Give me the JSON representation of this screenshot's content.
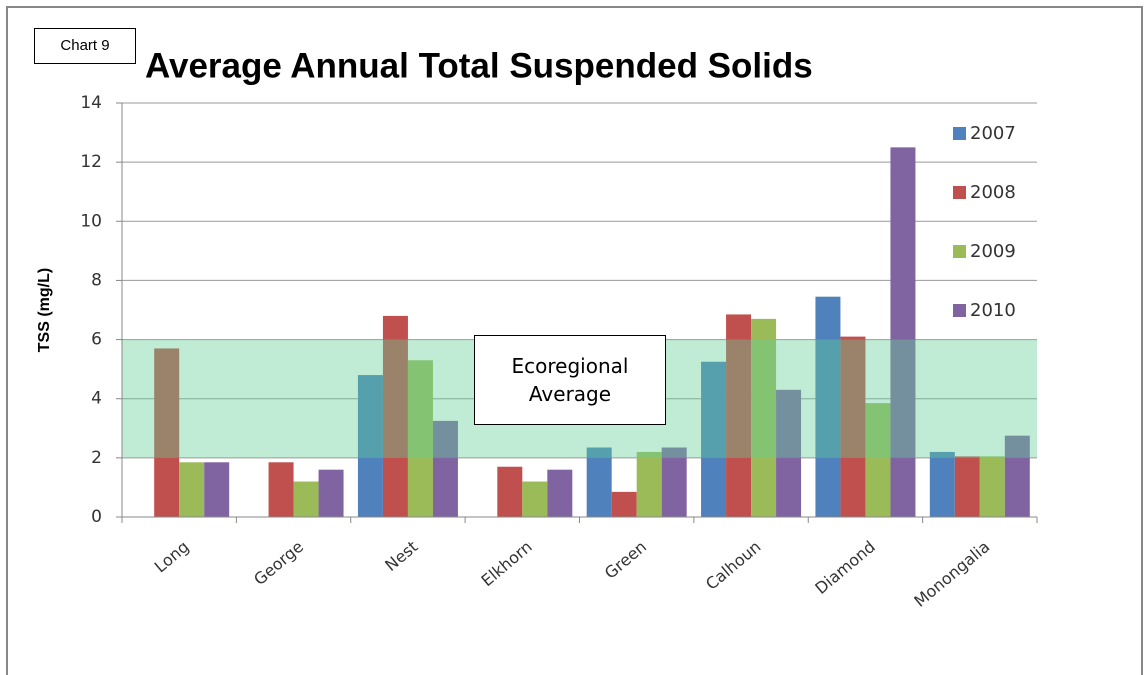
{
  "chart_data": {
    "type": "bar",
    "label": "Chart 9",
    "title": "Average Annual Total Suspended Solids",
    "y_label": "TSS (mg/L)",
    "categories": [
      "Long",
      "George",
      "Nest",
      "Elkhorn",
      "Green",
      "Calhoun",
      "Diamond",
      "Monongalia"
    ],
    "series": [
      {
        "name": "2007",
        "color": "#4f81bd",
        "values": [
          null,
          null,
          4.8,
          null,
          2.35,
          5.25,
          7.45,
          2.2
        ]
      },
      {
        "name": "2008",
        "color": "#c0504d",
        "values": [
          5.7,
          1.85,
          6.8,
          1.7,
          0.85,
          6.85,
          6.1,
          2.05
        ]
      },
      {
        "name": "2009",
        "color": "#9bbb59",
        "values": [
          1.85,
          1.2,
          5.3,
          1.2,
          2.2,
          6.7,
          3.85,
          2.05
        ]
      },
      {
        "name": "2010",
        "color": "#8064a2",
        "values": [
          1.85,
          1.6,
          3.25,
          1.6,
          2.35,
          4.3,
          12.5,
          2.75
        ]
      }
    ],
    "ylim": [
      0,
      14
    ],
    "yticks": [
      0,
      2,
      4,
      6,
      8,
      10,
      12,
      14
    ],
    "grid": true,
    "legend": "right",
    "reference_band": {
      "label": "Ecoregional Average",
      "range": [
        2,
        6
      ],
      "color": "#61cf96"
    }
  }
}
